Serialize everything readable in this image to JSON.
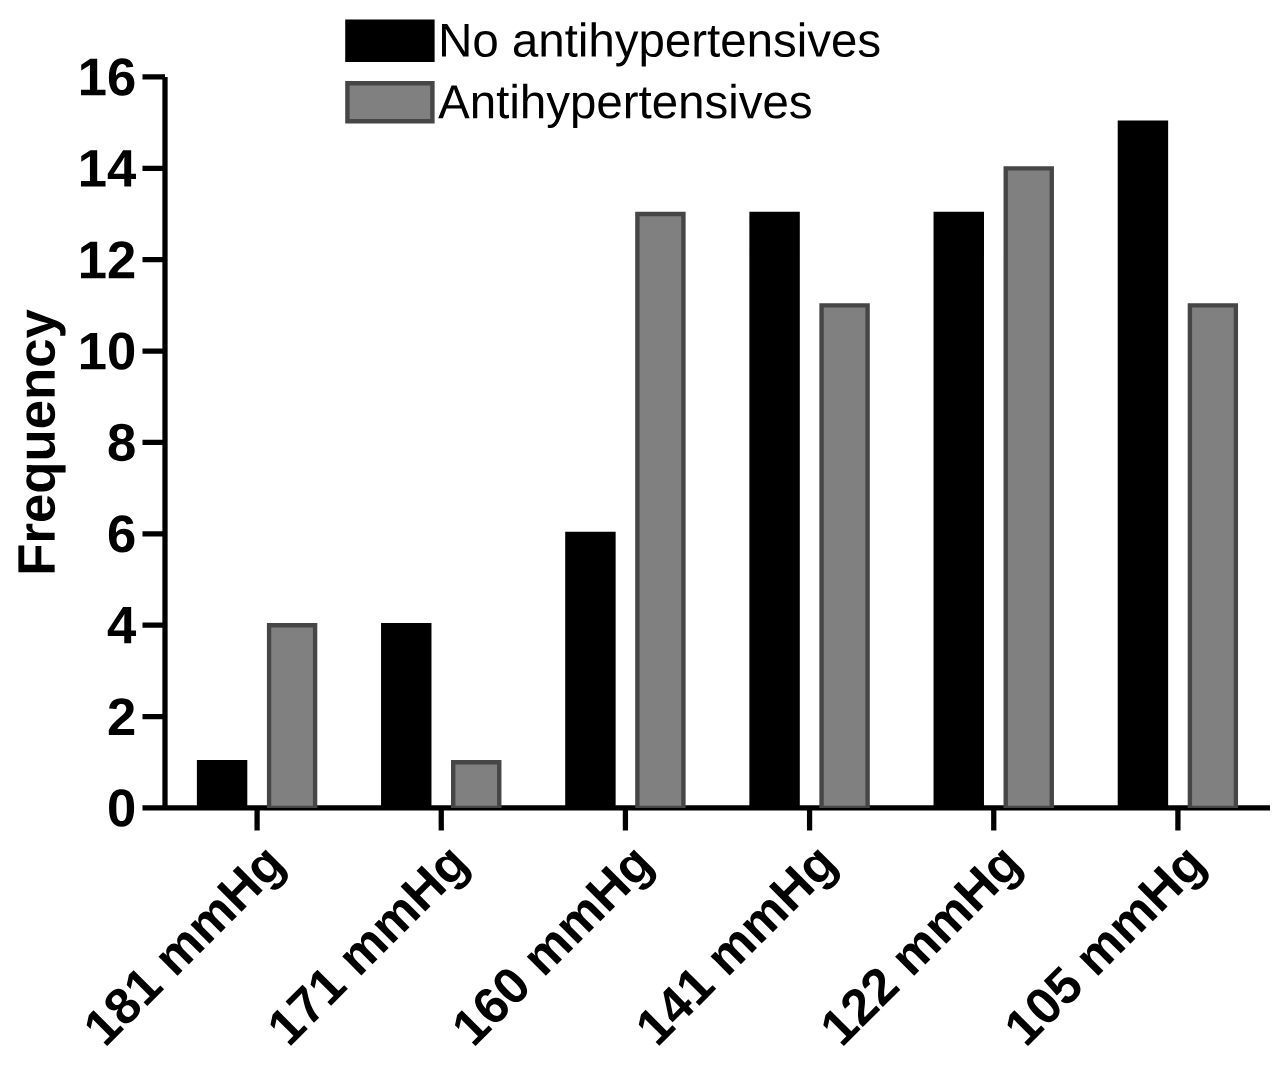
{
  "chart_data": {
    "type": "bar",
    "categories": [
      "181 mmHg",
      "171 mmHg",
      "160 mmHg",
      "141 mmHg",
      "122 mmHg",
      "105 mmHg"
    ],
    "series": [
      {
        "name": "No antihypertensives",
        "color": "#000000",
        "values": [
          1,
          4,
          6,
          13,
          13,
          15
        ]
      },
      {
        "name": "Antihypertensives",
        "color": "#808080",
        "values": [
          4,
          1,
          13,
          11,
          14,
          11
        ]
      }
    ],
    "ylabel": "Frequency",
    "ylim": [
      0,
      16
    ],
    "yticks": [
      0,
      2,
      4,
      6,
      8,
      10,
      12,
      14,
      16
    ],
    "legend": "top"
  }
}
